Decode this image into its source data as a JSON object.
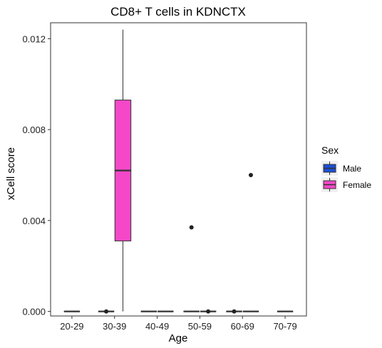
{
  "chart_data": {
    "type": "box",
    "title": "CD8+ T cells in KDNCTX",
    "xlabel": "Age",
    "ylabel": "xCell score",
    "categories": [
      "20-29",
      "30-39",
      "40-49",
      "50-59",
      "60-69",
      "70-79"
    ],
    "ylim": [
      -0.0002,
      0.0127
    ],
    "yticks": [
      0.0,
      0.004,
      0.008,
      0.012
    ],
    "ytick_labels": [
      "0.000",
      "0.004",
      "0.008",
      "0.012"
    ],
    "grid": false,
    "legend": {
      "title": "Sex",
      "position": "right",
      "entries": [
        {
          "name": "Male",
          "color": "#1a4fd6"
        },
        {
          "name": "Female",
          "color": "#f548c8"
        }
      ]
    },
    "series": [
      {
        "name": "Male",
        "color": "#1a4fd6",
        "boxes": [
          null,
          {
            "category": "30-39",
            "min": 0,
            "q1": 0,
            "median": 0,
            "q3": 0,
            "max": 0,
            "outliers": [
              0.0
            ]
          },
          {
            "category": "40-49",
            "min": 0,
            "q1": 0,
            "median": 0,
            "q3": 0,
            "max": 0,
            "outliers": []
          },
          {
            "category": "50-59",
            "min": 0,
            "q1": 0,
            "median": 0,
            "q3": 0,
            "max": 0,
            "outliers": [
              0.0037
            ]
          },
          {
            "category": "60-69",
            "min": 0,
            "q1": 0,
            "median": 0,
            "q3": 0,
            "max": 0,
            "outliers": [
              0.0
            ]
          },
          null
        ]
      },
      {
        "name": "Female",
        "color": "#f548c8",
        "boxes": [
          {
            "category": "20-29",
            "min": 0,
            "q1": 0,
            "median": 0,
            "q3": 0,
            "max": 0,
            "outliers": []
          },
          {
            "category": "30-39",
            "min": 0.0,
            "q1": 0.0031,
            "median": 0.0062,
            "q3": 0.0093,
            "max": 0.0124,
            "outliers": []
          },
          {
            "category": "40-49",
            "min": 0,
            "q1": 0,
            "median": 0,
            "q3": 0,
            "max": 0,
            "outliers": []
          },
          {
            "category": "50-59",
            "min": 0,
            "q1": 0,
            "median": 0,
            "q3": 0,
            "max": 0,
            "outliers": [
              0.0
            ]
          },
          {
            "category": "60-69",
            "min": 0,
            "q1": 0,
            "median": 0,
            "q3": 0,
            "max": 0,
            "outliers": [
              0.006
            ]
          },
          {
            "category": "70-79",
            "min": 0,
            "q1": 0,
            "median": 0,
            "q3": 0,
            "max": 0,
            "outliers": []
          }
        ]
      }
    ]
  }
}
